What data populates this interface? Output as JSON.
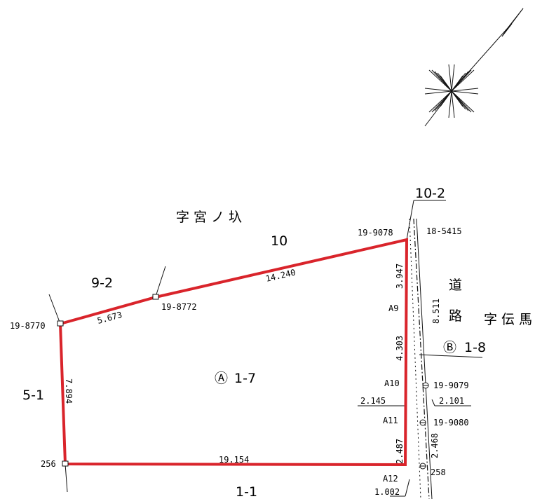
{
  "labels": {
    "place_north": "字宮ノ圦",
    "place_east": "字伝馬",
    "road_chars": [
      "道",
      "路"
    ],
    "parcel_main_symbol": "Ⓐ",
    "parcel_main_number": "1-7",
    "parcel_road_symbol": "Ⓑ",
    "parcel_road_number": "1-8",
    "lot_10": "10",
    "lot_10_2": "10-2",
    "lot_9_2": "9-2",
    "lot_5_1": "5-1",
    "lot_1_1": "1-1"
  },
  "points": {
    "p_19_9078": "19-9078",
    "p_18_5415": "18-5415",
    "p_19_8772": "19-8772",
    "p_19_8770": "19-8770",
    "p_256": "256",
    "p_19_9079": "19-9079",
    "p_19_9080": "19-9080",
    "p_258": "258",
    "a9": "A9",
    "a10": "A10",
    "a11": "A11",
    "a12": "A12"
  },
  "dimensions": {
    "d_14_240": "14.240",
    "d_5_673": "5.673",
    "d_7_894": "7.894",
    "d_19_154": "19.154",
    "d_3_947": "3.947",
    "d_4_303": "4.303",
    "d_2_487": "2.487",
    "d_8_511": "8.511",
    "d_2_468": "2.468",
    "d_2_145": "2.145",
    "d_2_101": "2.101",
    "d_1_002": "1.002"
  },
  "colors": {
    "boundary": "#d9242b",
    "linework": "#111111"
  }
}
